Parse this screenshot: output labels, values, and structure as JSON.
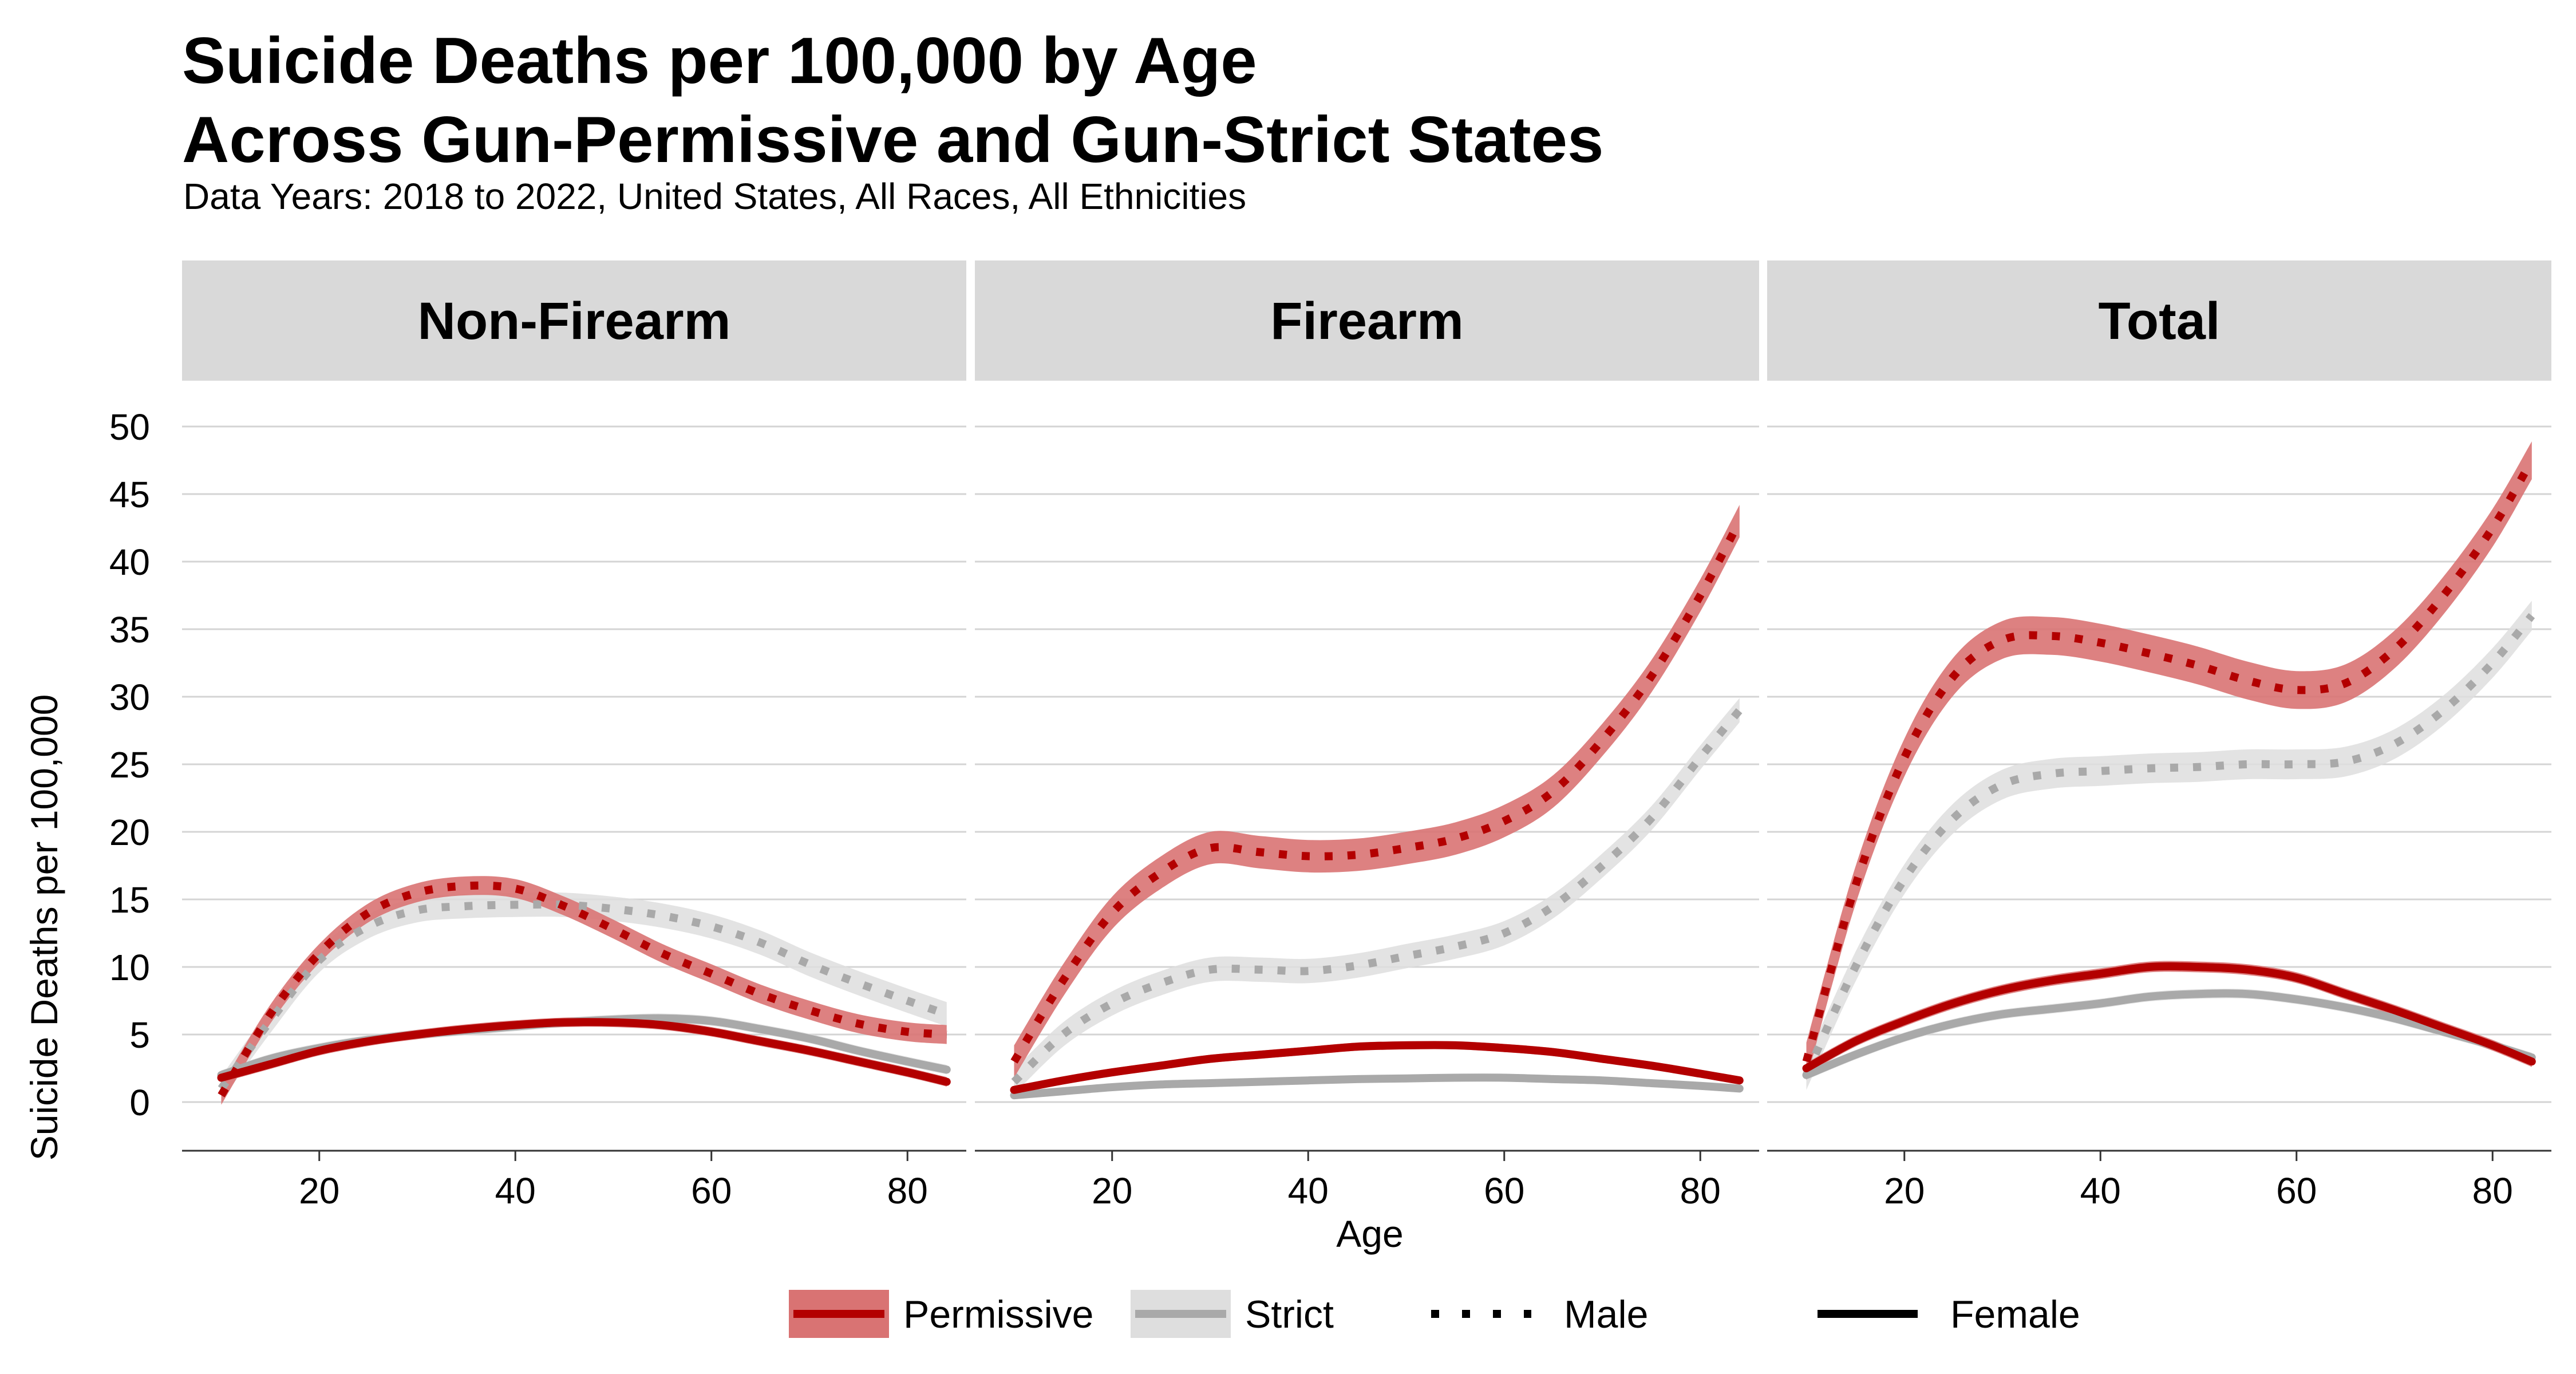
{
  "chart_data": {
    "type": "line",
    "title_lines": [
      "Suicide Deaths per 100,000 by Age",
      "Across Gun-Permissive and Gun-Strict States"
    ],
    "subtitle": "Data Years: 2018 to 2022, United States, All Races, All Ethnicities",
    "xlabel": "Age",
    "ylabel": "Suicide Deaths per 100,000",
    "xlim": [
      6,
      86
    ],
    "ylim": [
      -3.5,
      50
    ],
    "x_ticks": [
      20,
      40,
      60,
      80
    ],
    "y_ticks": [
      0,
      5,
      10,
      15,
      20,
      25,
      30,
      35,
      40,
      45,
      50
    ],
    "grid": "horizontal",
    "legend_position": "bottom",
    "colors": {
      "Permissive": "#b30000",
      "Strict": "#a9a9a9",
      "Permissive_band": "#d97373",
      "Strict_band": "#dedede"
    },
    "legend": {
      "state_items": [
        {
          "key": "Permissive",
          "label": "Permissive"
        },
        {
          "key": "Strict",
          "label": "Strict"
        }
      ],
      "sex_items": [
        {
          "key": "Male",
          "label": "Male",
          "style": "dotted"
        },
        {
          "key": "Female",
          "label": "Female",
          "style": "solid"
        }
      ]
    },
    "x": [
      10,
      15,
      20,
      25,
      30,
      35,
      40,
      45,
      50,
      55,
      60,
      65,
      70,
      75,
      80,
      84
    ],
    "panels": [
      {
        "name": "Non-Firearm",
        "series": [
          {
            "state": "Permissive",
            "sex": "Male",
            "values": [
              0.5,
              6.5,
              11.0,
              14.0,
              15.5,
              16.0,
              15.8,
              14.5,
              12.8,
              11.0,
              9.5,
              8.0,
              6.8,
              5.8,
              5.2,
              5.0
            ],
            "band": 0.7
          },
          {
            "state": "Strict",
            "sex": "Male",
            "values": [
              1.0,
              6.0,
              10.5,
              13.0,
              14.2,
              14.5,
              14.6,
              14.6,
              14.3,
              13.8,
              13.0,
              11.8,
              10.2,
              8.8,
              7.5,
              6.5
            ],
            "band": 0.9
          },
          {
            "state": "Permissive",
            "sex": "Female",
            "values": [
              1.8,
              2.8,
              3.8,
              4.5,
              5.0,
              5.4,
              5.7,
              5.9,
              5.9,
              5.7,
              5.2,
              4.5,
              3.8,
              3.0,
              2.2,
              1.5
            ],
            "band": 0.35
          },
          {
            "state": "Strict",
            "sex": "Female",
            "values": [
              2.0,
              3.2,
              4.0,
              4.6,
              5.0,
              5.3,
              5.6,
              5.9,
              6.1,
              6.2,
              6.0,
              5.4,
              4.7,
              3.8,
              3.0,
              2.4
            ],
            "band": 0.35
          }
        ]
      },
      {
        "name": "Firearm",
        "series": [
          {
            "state": "Permissive",
            "sex": "Male",
            "values": [
              3.0,
              9.0,
              14.0,
              17.0,
              18.8,
              18.5,
              18.2,
              18.3,
              18.8,
              19.5,
              20.8,
              23.0,
              26.8,
              31.5,
              37.5,
              43.0
            ],
            "band": 1.2
          },
          {
            "state": "Strict",
            "sex": "Male",
            "values": [
              1.5,
              5.0,
              7.3,
              8.8,
              9.8,
              9.8,
              9.7,
              10.1,
              10.8,
              11.5,
              12.5,
              14.5,
              17.5,
              21.0,
              25.5,
              29.0
            ],
            "band": 0.9
          },
          {
            "state": "Permissive",
            "sex": "Female",
            "values": [
              0.9,
              1.6,
              2.2,
              2.7,
              3.2,
              3.5,
              3.8,
              4.1,
              4.2,
              4.2,
              4.0,
              3.7,
              3.2,
              2.7,
              2.1,
              1.6
            ],
            "band": 0.3
          },
          {
            "state": "Strict",
            "sex": "Female",
            "values": [
              0.5,
              0.8,
              1.1,
              1.3,
              1.4,
              1.5,
              1.6,
              1.7,
              1.75,
              1.8,
              1.8,
              1.7,
              1.6,
              1.4,
              1.2,
              1.0
            ],
            "band": 0.2
          }
        ]
      },
      {
        "name": "Total",
        "series": [
          {
            "state": "Permissive",
            "sex": "Male",
            "values": [
              3.0,
              16.0,
              25.5,
              31.5,
              34.2,
              34.5,
              34.0,
              33.2,
              32.3,
              31.2,
              30.5,
              31.0,
              33.5,
              37.5,
              42.5,
              47.5
            ],
            "band": 1.4
          },
          {
            "state": "Strict",
            "sex": "Male",
            "values": [
              2.0,
              10.0,
              16.5,
              21.0,
              23.5,
              24.3,
              24.5,
              24.7,
              24.8,
              25.0,
              25.0,
              25.2,
              26.5,
              29.0,
              32.5,
              36.0
            ],
            "band": 1.1
          },
          {
            "state": "Permissive",
            "sex": "Female",
            "values": [
              2.5,
              4.5,
              6.0,
              7.3,
              8.3,
              9.0,
              9.5,
              10.0,
              10.0,
              9.8,
              9.2,
              8.0,
              6.8,
              5.5,
              4.2,
              3.0
            ],
            "band": 0.4
          },
          {
            "state": "Strict",
            "sex": "Female",
            "values": [
              2.0,
              3.5,
              4.8,
              5.8,
              6.5,
              6.9,
              7.3,
              7.8,
              8.0,
              8.0,
              7.6,
              7.0,
              6.2,
              5.2,
              4.2,
              3.3
            ],
            "band": 0.35
          }
        ]
      }
    ]
  }
}
